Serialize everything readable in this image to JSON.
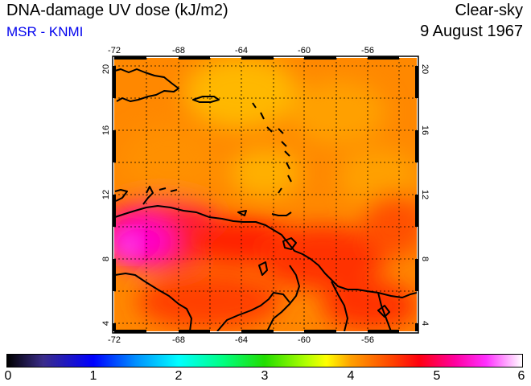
{
  "header": {
    "title": "DNA-damage UV dose (kJ/m2)",
    "credit": "MSR - KNMI",
    "sky_condition": "Clear-sky",
    "date": "9 August 1967"
  },
  "map": {
    "lon_ticks": [
      "-72",
      "-68",
      "-64",
      "-60",
      "-56"
    ],
    "lat_ticks": [
      "4",
      "8",
      "12",
      "16",
      "20"
    ],
    "lon_range": [
      -72,
      -52.4
    ],
    "lat_range": [
      3.5,
      20.4
    ],
    "grid": true,
    "field_colors": {
      "orange": "#ffa000",
      "red": "#ff2000",
      "magenta": "#ff00c0",
      "yellow_orange": "#ffc000"
    }
  },
  "colorbar": {
    "labels": [
      "0",
      "1",
      "2",
      "3",
      "4",
      "5",
      "6"
    ],
    "min": 0,
    "max": 6
  }
}
